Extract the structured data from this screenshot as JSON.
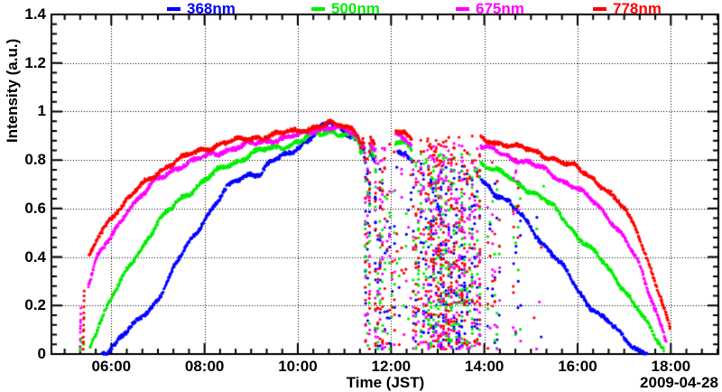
{
  "chart_data": {
    "type": "scatter",
    "title": "",
    "xlabel": "Time (JST)",
    "ylabel": "Intensity (a.u.)",
    "date_label": "2009-04-28",
    "grid": {
      "style": "dotted",
      "color": "#000000",
      "on": true
    },
    "frame_color": "#000000",
    "x_axis": {
      "unit": "hours JST",
      "range": [
        4.72,
        19.02
      ],
      "major_ticks": [
        6,
        8,
        10,
        12,
        14,
        16,
        18
      ],
      "major_labels": [
        "06:00",
        "08:00",
        "10:00",
        "12:00",
        "14:00",
        "16:00",
        "18:00"
      ],
      "minor_step_hours": 0.3333
    },
    "y_axis": {
      "range": [
        0,
        1.4
      ],
      "major_ticks": [
        0,
        0.2,
        0.4,
        0.6,
        0.8,
        1.0,
        1.2,
        1.4
      ],
      "major_labels": [
        "0",
        "0.2",
        "0.4",
        "0.6",
        "0.8",
        "1",
        "1.2",
        "1.4"
      ],
      "minor_step": 0.04
    },
    "legend": [
      {
        "label": "368nm",
        "color": "#0000ff"
      },
      {
        "label": "500nm",
        "color": "#00ee00"
      },
      {
        "label": "675nm",
        "color": "#ff00ff"
      },
      {
        "label": "778nm",
        "color": "#ff0000"
      }
    ],
    "seed": 20090428,
    "dropout_scatter": {
      "vmin": 0.02,
      "intervals": [
        {
          "t0": 11.43,
          "t1": 11.56,
          "n": 24
        },
        {
          "t0": 11.64,
          "t1": 11.84,
          "n": 30
        },
        {
          "t0": 11.84,
          "t1": 12.1,
          "n": 16
        },
        {
          "t0": 12.1,
          "t1": 12.45,
          "n": 8
        },
        {
          "t0": 12.45,
          "t1": 12.78,
          "n": 40
        },
        {
          "t0": 12.78,
          "t1": 13.15,
          "n": 80
        },
        {
          "t0": 13.15,
          "t1": 13.55,
          "n": 80
        },
        {
          "t0": 13.55,
          "t1": 13.93,
          "n": 55
        },
        {
          "t0": 14.05,
          "t1": 14.35,
          "n": 14
        },
        {
          "t0": 14.6,
          "t1": 14.8,
          "n": 9
        },
        {
          "t0": 15.05,
          "t1": 15.3,
          "n": 2
        }
      ]
    },
    "series": [
      {
        "name": "368nm",
        "color": "#0000ff",
        "scatter_vmax": 0.79,
        "wiggle": 0.013,
        "burst": [],
        "segments": [
          {
            "pts": [
              [
                5.8,
                0.005
              ],
              [
                6.0,
                0.035
              ],
              [
                6.5,
                0.115
              ],
              [
                7.0,
                0.235
              ],
              [
                7.5,
                0.4
              ],
              [
                8.0,
                0.565
              ],
              [
                8.3,
                0.635
              ],
              [
                8.6,
                0.7
              ],
              [
                9.0,
                0.755
              ],
              [
                9.2,
                0.745
              ],
              [
                9.4,
                0.785
              ],
              [
                9.6,
                0.8
              ],
              [
                9.9,
                0.845
              ],
              [
                10.2,
                0.885
              ],
              [
                10.5,
                0.925
              ],
              [
                10.7,
                0.948
              ],
              [
                10.9,
                0.938
              ],
              [
                11.1,
                0.915
              ],
              [
                11.3,
                0.885
              ],
              [
                11.36,
                0.83
              ],
              [
                11.4,
                0.86
              ],
              [
                11.45,
                0.78
              ]
            ]
          },
          {
            "pts": [
              [
                11.56,
                0.82
              ],
              [
                11.64,
                0.785
              ]
            ]
          },
          {
            "pts": [
              [
                12.14,
                0.845
              ],
              [
                12.3,
                0.835
              ],
              [
                12.45,
                0.785
              ]
            ]
          },
          {
            "pts": [
              [
                12.78,
                0.73
              ],
              [
                12.95,
                0.655
              ],
              [
                13.1,
                0.55
              ]
            ],
            "loose": true
          },
          {
            "pts": [
              [
                13.93,
                0.725
              ],
              [
                14.1,
                0.7
              ],
              [
                14.2,
                0.67
              ],
              [
                14.35,
                0.655
              ],
              [
                14.5,
                0.625
              ],
              [
                14.75,
                0.575
              ],
              [
                15.0,
                0.525
              ],
              [
                15.25,
                0.465
              ],
              [
                15.5,
                0.4
              ],
              [
                15.75,
                0.335
              ],
              [
                16.0,
                0.27
              ],
              [
                16.25,
                0.21
              ],
              [
                16.5,
                0.155
              ],
              [
                16.75,
                0.11
              ],
              [
                17.0,
                0.068
              ],
              [
                17.3,
                0.025
              ],
              [
                17.5,
                0.005
              ]
            ]
          }
        ]
      },
      {
        "name": "500nm",
        "color": "#00ee00",
        "scatter_vmax": 0.83,
        "wiggle": 0.009,
        "burst": [
          [
            5.33,
            0.015
          ],
          [
            5.34,
            0.03
          ],
          [
            5.35,
            0.05
          ],
          [
            5.36,
            0.065
          ],
          [
            5.4,
            0.02
          ],
          [
            5.41,
            0.04
          ]
        ],
        "segments": [
          {
            "pts": [
              [
                5.55,
                0.035
              ],
              [
                5.75,
                0.135
              ],
              [
                6.0,
                0.225
              ],
              [
                6.5,
                0.4
              ],
              [
                7.0,
                0.54
              ],
              [
                7.5,
                0.645
              ],
              [
                8.0,
                0.715
              ],
              [
                8.5,
                0.78
              ],
              [
                9.0,
                0.825
              ],
              [
                9.5,
                0.85
              ],
              [
                10.0,
                0.875
              ],
              [
                10.4,
                0.905
              ],
              [
                10.7,
                0.92
              ],
              [
                10.9,
                0.915
              ],
              [
                11.1,
                0.9
              ],
              [
                11.3,
                0.875
              ],
              [
                11.36,
                0.82
              ],
              [
                11.4,
                0.86
              ],
              [
                11.45,
                0.77
              ]
            ]
          },
          {
            "pts": [
              [
                11.56,
                0.845
              ],
              [
                11.64,
                0.815
              ]
            ]
          },
          {
            "pts": [
              [
                12.1,
                0.875
              ],
              [
                12.3,
                0.862
              ],
              [
                12.45,
                0.835
              ]
            ]
          },
          {
            "pts": [
              [
                12.78,
                0.78
              ],
              [
                12.95,
                0.71
              ],
              [
                13.1,
                0.63
              ]
            ],
            "loose": true
          },
          {
            "pts": [
              [
                13.93,
                0.795
              ],
              [
                14.15,
                0.765
              ],
              [
                14.3,
                0.75
              ],
              [
                14.5,
                0.73
              ],
              [
                14.7,
                0.705
              ],
              [
                15.0,
                0.675
              ],
              [
                15.25,
                0.64
              ],
              [
                15.5,
                0.6
              ],
              [
                15.75,
                0.55
              ],
              [
                16.0,
                0.49
              ],
              [
                16.25,
                0.44
              ],
              [
                16.5,
                0.385
              ],
              [
                16.75,
                0.33
              ],
              [
                17.0,
                0.27
              ],
              [
                17.3,
                0.185
              ],
              [
                17.6,
                0.085
              ],
              [
                17.85,
                0.02
              ]
            ]
          }
        ]
      },
      {
        "name": "675nm",
        "color": "#ff00ff",
        "scatter_vmax": 0.87,
        "wiggle": 0.007,
        "burst": [
          [
            5.33,
            0.03
          ],
          [
            5.333,
            0.06
          ],
          [
            5.336,
            0.09
          ],
          [
            5.34,
            0.115
          ],
          [
            5.343,
            0.14
          ],
          [
            5.346,
            0.165
          ],
          [
            5.35,
            0.19
          ],
          [
            5.335,
            0.105
          ],
          [
            5.34,
            0.13
          ]
        ],
        "segments": [
          {
            "pts": [
              [
                5.51,
                0.29
              ],
              [
                5.7,
                0.4
              ],
              [
                6.0,
                0.48
              ],
              [
                6.35,
                0.6
              ],
              [
                7.0,
                0.72
              ],
              [
                7.5,
                0.78
              ],
              [
                8.0,
                0.81
              ],
              [
                8.5,
                0.845
              ],
              [
                9.0,
                0.865
              ],
              [
                9.5,
                0.885
              ],
              [
                10.0,
                0.9
              ],
              [
                10.4,
                0.925
              ],
              [
                10.7,
                0.938
              ],
              [
                11.0,
                0.925
              ],
              [
                11.2,
                0.905
              ],
              [
                11.3,
                0.89
              ],
              [
                11.36,
                0.84
              ],
              [
                11.4,
                0.88
              ],
              [
                11.45,
                0.8
              ]
            ]
          },
          {
            "pts": [
              [
                11.56,
                0.87
              ],
              [
                11.64,
                0.845
              ]
            ]
          },
          {
            "pts": [
              [
                12.1,
                0.9
              ],
              [
                12.3,
                0.89
              ],
              [
                12.45,
                0.865
              ]
            ]
          },
          {
            "pts": [
              [
                12.78,
                0.84
              ],
              [
                12.95,
                0.785
              ],
              [
                13.1,
                0.72
              ]
            ],
            "loose": true
          },
          {
            "pts": [
              [
                13.93,
                0.855
              ],
              [
                14.25,
                0.835
              ],
              [
                14.6,
                0.81
              ],
              [
                15.0,
                0.785
              ],
              [
                15.3,
                0.76
              ],
              [
                15.6,
                0.725
              ],
              [
                16.0,
                0.68
              ],
              [
                16.3,
                0.635
              ],
              [
                16.6,
                0.58
              ],
              [
                17.0,
                0.48
              ],
              [
                17.3,
                0.375
              ],
              [
                17.6,
                0.22
              ],
              [
                17.9,
                0.065
              ]
            ]
          }
        ]
      },
      {
        "name": "778nm",
        "color": "#ff0000",
        "scatter_vmax": 0.9,
        "wiggle": 0.006,
        "burst": [
          [
            5.395,
            0.02
          ],
          [
            5.398,
            0.045
          ],
          [
            5.4,
            0.07
          ],
          [
            5.402,
            0.095
          ],
          [
            5.405,
            0.12
          ],
          [
            5.407,
            0.145
          ],
          [
            5.41,
            0.17
          ],
          [
            5.412,
            0.195
          ],
          [
            5.415,
            0.22
          ],
          [
            5.417,
            0.24
          ],
          [
            5.42,
            0.26
          ],
          [
            5.405,
            0.05
          ],
          [
            5.41,
            0.1
          ],
          [
            5.415,
            0.15
          ]
        ],
        "segments": [
          {
            "pts": [
              [
                5.53,
                0.4
              ],
              [
                5.7,
                0.475
              ],
              [
                6.0,
                0.565
              ],
              [
                6.5,
                0.67
              ],
              [
                7.0,
                0.75
              ],
              [
                7.4,
                0.8
              ],
              [
                8.0,
                0.845
              ],
              [
                8.5,
                0.875
              ],
              [
                9.0,
                0.89
              ],
              [
                9.5,
                0.905
              ],
              [
                10.0,
                0.92
              ],
              [
                10.4,
                0.938
              ],
              [
                10.7,
                0.95
              ],
              [
                11.0,
                0.94
              ],
              [
                11.2,
                0.925
              ],
              [
                11.3,
                0.91
              ],
              [
                11.36,
                0.86
              ],
              [
                11.4,
                0.9
              ],
              [
                11.45,
                0.82
              ]
            ]
          },
          {
            "pts": [
              [
                11.56,
                0.885
              ],
              [
                11.64,
                0.865
              ]
            ]
          },
          {
            "pts": [
              [
                12.1,
                0.925
              ],
              [
                12.3,
                0.915
              ],
              [
                12.45,
                0.89
              ]
            ]
          },
          {
            "pts": [
              [
                12.78,
                0.875
              ],
              [
                12.95,
                0.825
              ],
              [
                13.1,
                0.77
              ]
            ],
            "loose": true
          },
          {
            "pts": [
              [
                13.93,
                0.885
              ],
              [
                14.2,
                0.875
              ],
              [
                14.5,
                0.865
              ],
              [
                15.0,
                0.84
              ],
              [
                15.5,
                0.805
              ],
              [
                16.0,
                0.765
              ],
              [
                16.3,
                0.73
              ],
              [
                16.6,
                0.68
              ],
              [
                17.0,
                0.6
              ],
              [
                17.3,
                0.5
              ],
              [
                17.6,
                0.335
              ],
              [
                17.85,
                0.19
              ],
              [
                17.98,
                0.1
              ]
            ]
          }
        ]
      }
    ]
  }
}
